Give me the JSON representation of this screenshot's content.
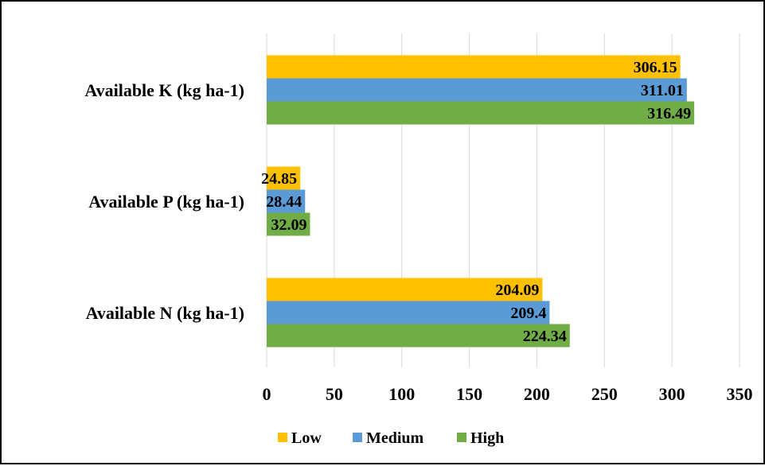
{
  "chart_data": {
    "type": "bar",
    "orientation": "horizontal",
    "categories": [
      "Available K (kg ha-1)",
      "Available P (kg ha-1)",
      "Available N (kg ha-1)"
    ],
    "series": [
      {
        "name": "Low",
        "color": "#FFC000",
        "values": [
          306.15,
          24.85,
          204.09
        ]
      },
      {
        "name": "Medium",
        "color": "#5B9BD5",
        "values": [
          311.01,
          28.44,
          209.4
        ]
      },
      {
        "name": "High",
        "color": "#70AD47",
        "values": [
          316.49,
          32.09,
          224.34
        ]
      }
    ],
    "data_labels": [
      [
        "306.15",
        "24.85",
        "204.09"
      ],
      [
        "311.01",
        "28.44",
        "209.4"
      ],
      [
        "316.49",
        "32.09",
        "224.34"
      ]
    ],
    "x_ticks": [
      "0",
      "50",
      "100",
      "150",
      "200",
      "250",
      "300",
      "350"
    ],
    "xlim": [
      0,
      350
    ],
    "grid": "vertical",
    "legend_position": "bottom"
  }
}
